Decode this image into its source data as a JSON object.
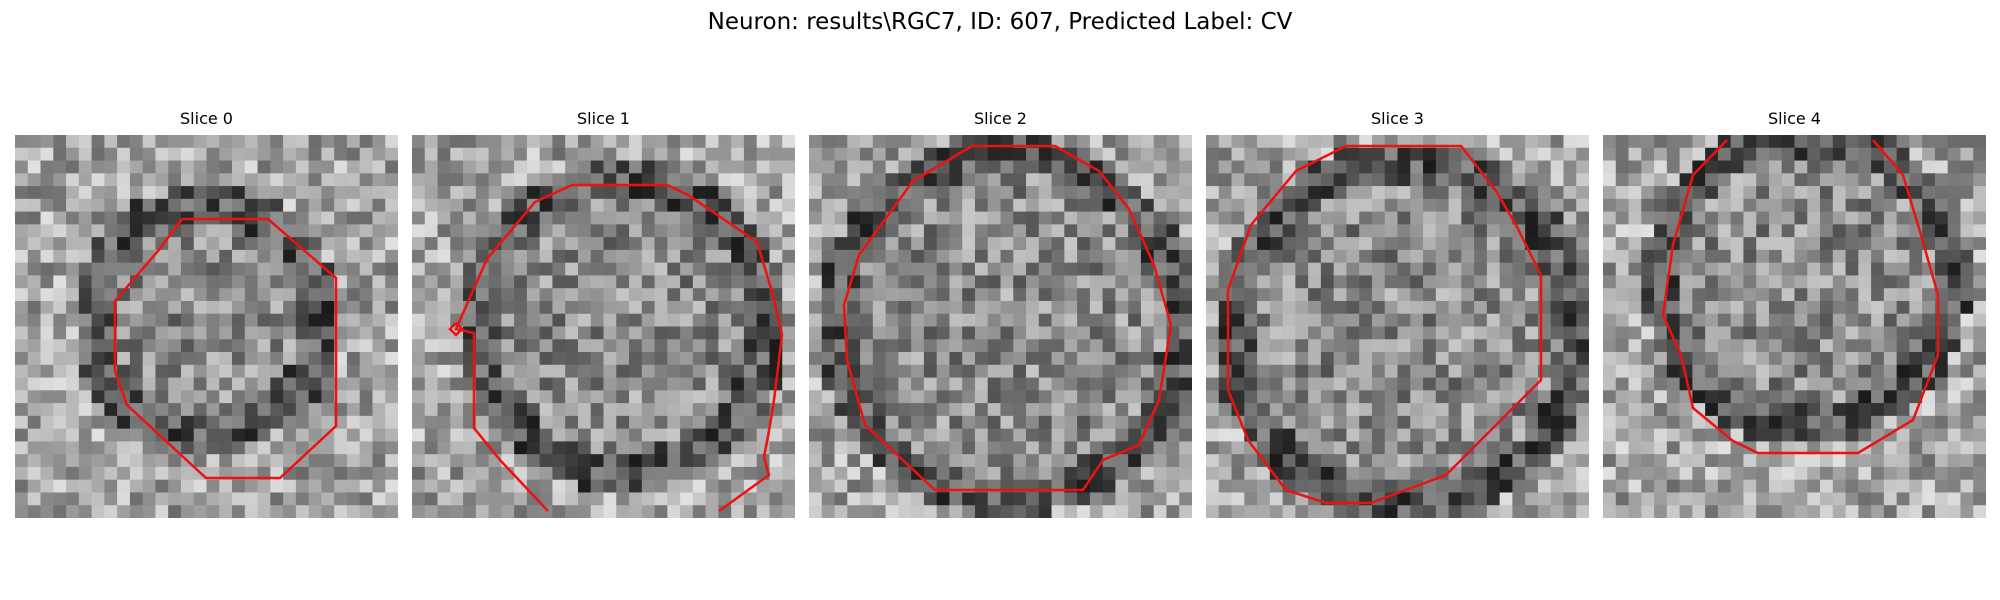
{
  "figure": {
    "title": "Neuron: results\\RGC7, ID: 607, Predicted Label: CV",
    "contour_color": "#ee1111",
    "colormap": "gray",
    "panels": [
      {
        "title": "Slice 0"
      },
      {
        "title": "Slice 1"
      },
      {
        "title": "Slice 2"
      },
      {
        "title": "Slice 3"
      },
      {
        "title": "Slice 4"
      }
    ]
  }
}
